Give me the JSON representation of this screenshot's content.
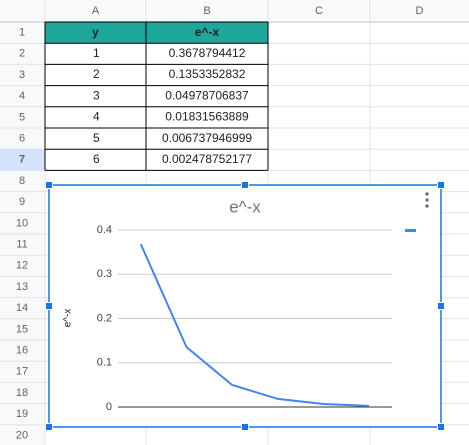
{
  "sheet": {
    "columns": [
      "A",
      "B",
      "C",
      "D"
    ],
    "row_numbers": [
      1,
      2,
      3,
      4,
      5,
      6,
      7,
      8,
      9,
      10,
      11,
      12,
      13,
      14,
      15,
      16,
      17,
      18,
      19,
      20
    ],
    "table": {
      "header": [
        "y",
        "e^-x"
      ],
      "rows": [
        [
          1,
          "0.3678794412"
        ],
        [
          2,
          "0.1353352832"
        ],
        [
          3,
          "0.04978706837"
        ],
        [
          4,
          "0.01831563889"
        ],
        [
          5,
          "0.006737946999"
        ],
        [
          6,
          "0.002478752177"
        ]
      ]
    }
  },
  "chart_data": {
    "type": "line",
    "title": "e^-x",
    "y_label": "e^-x",
    "categories": [
      null,
      null,
      null,
      null,
      null,
      null
    ],
    "series": [
      {
        "color": "#4285f4",
        "values": [
          0.3678794412,
          0.1353352832,
          0.04978706837,
          0.01831563889,
          0.006737946999,
          0.002478752177
        ]
      }
    ],
    "ylim": [
      0,
      0.4
    ],
    "yticks": [
      0,
      0.1,
      0.2,
      0.3,
      0.4
    ],
    "grid": true,
    "legend": "top-right"
  }
}
